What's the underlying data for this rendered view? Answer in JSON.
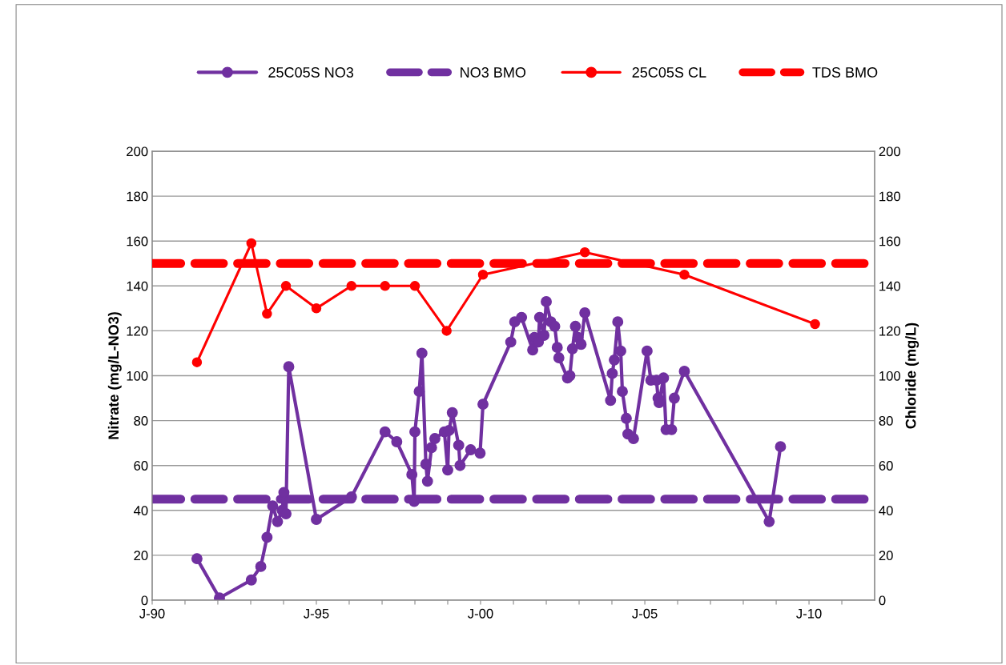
{
  "chart_data": {
    "type": "line",
    "ylabel": "Nitrate (mg/L-NO3)",
    "y2label": "Chloride (mg/L)",
    "xlim": [
      "1990-01-01",
      "2012-01-01"
    ],
    "xticks": [
      {
        "value": "1990-01-01",
        "label": "J-90"
      },
      {
        "value": "1991-01-01",
        "label": null
      },
      {
        "value": "1992-01-01",
        "label": null
      },
      {
        "value": "1993-01-01",
        "label": null
      },
      {
        "value": "1994-01-01",
        "label": null
      },
      {
        "value": "1995-01-01",
        "label": "J-95"
      },
      {
        "value": "1996-01-01",
        "label": null
      },
      {
        "value": "1997-01-01",
        "label": null
      },
      {
        "value": "1998-01-01",
        "label": null
      },
      {
        "value": "1999-01-01",
        "label": null
      },
      {
        "value": "2000-01-01",
        "label": "J-00"
      },
      {
        "value": "2001-01-01",
        "label": null
      },
      {
        "value": "2002-01-01",
        "label": null
      },
      {
        "value": "2003-01-01",
        "label": null
      },
      {
        "value": "2004-01-01",
        "label": null
      },
      {
        "value": "2005-01-01",
        "label": "J-05"
      },
      {
        "value": "2006-01-01",
        "label": null
      },
      {
        "value": "2007-01-01",
        "label": null
      },
      {
        "value": "2008-01-01",
        "label": null
      },
      {
        "value": "2009-01-01",
        "label": null
      },
      {
        "value": "2010-01-01",
        "label": "J-10"
      },
      {
        "value": "2011-01-01",
        "label": null
      }
    ],
    "ylim": [
      0,
      200
    ],
    "yticks": [
      0,
      20,
      40,
      60,
      80,
      100,
      120,
      140,
      160,
      180,
      200
    ],
    "y2lim": [
      0,
      200
    ],
    "y2ticks": [
      0,
      20,
      40,
      60,
      80,
      100,
      120,
      140,
      160,
      180,
      200
    ],
    "grid": "y",
    "legend": "top",
    "marker": "circle",
    "line_style": "solid",
    "series": [
      {
        "name": "25C05S NO3",
        "color": "#7030a0",
        "axis": "y",
        "x": [
          "1991-05-14",
          "1992-01-19",
          "1993-01-08",
          "1993-04-23",
          "1993-07-01",
          "1993-09-02",
          "1993-10-26",
          "1993-12-17",
          "1994-01-05",
          "1994-01-28",
          "1994-02-28",
          "1995-01-01",
          "1996-01-26",
          "1997-02-03",
          "1997-06-13",
          "1997-11-28",
          "1997-12-24",
          "1998-01-01",
          "1998-02-18",
          "1998-03-20",
          "1998-05-03",
          "1998-05-21",
          "1998-07-05",
          "1998-08-11",
          "1998-11-25",
          "1999-01-01",
          "1999-01-15",
          "1999-02-21",
          "1999-05-03",
          "1999-05-18",
          "1999-09-13",
          "1999-12-27",
          "2000-01-28",
          "2000-12-02",
          "2001-01-15",
          "2001-04-01",
          "2001-08-03",
          "2001-08-21",
          "2001-10-05",
          "2001-10-19",
          "2001-12-06",
          "2002-01-01",
          "2002-02-21",
          "2002-04-05",
          "2002-05-03",
          "2002-05-21",
          "2002-08-25",
          "2002-09-20",
          "2002-10-19",
          "2002-11-21",
          "2002-12-20",
          "2003-01-23",
          "2003-03-06",
          "2003-12-17",
          "2004-01-05",
          "2004-01-28",
          "2004-03-06",
          "2004-04-08",
          "2004-04-26",
          "2004-06-09",
          "2004-06-27",
          "2004-08-28",
          "2005-01-26",
          "2005-03-09",
          "2005-05-11",
          "2005-05-28",
          "2005-06-09",
          "2005-07-28",
          "2005-08-25",
          "2005-10-26",
          "2005-11-25",
          "2006-03-17",
          "2008-10-15",
          "2009-02-18"
        ],
        "values": [
          18.5,
          1,
          9,
          15,
          28,
          42,
          35,
          40,
          48,
          38.5,
          104,
          36,
          46,
          75,
          70.6,
          56,
          44,
          75,
          93,
          110,
          60.6,
          53,
          68,
          72,
          75,
          58,
          75.6,
          83.5,
          69,
          60,
          67,
          65.5,
          87.3,
          115,
          124,
          126,
          111.5,
          117,
          115,
          126,
          118,
          133,
          124,
          122,
          112.6,
          108,
          99,
          100,
          112,
          122,
          117,
          114,
          128,
          89,
          101,
          107,
          124,
          111,
          93,
          81,
          74,
          72,
          111,
          98,
          98,
          90,
          88,
          99,
          76,
          76,
          90,
          102,
          35,
          68.4
        ]
      },
      {
        "name": "25C05S CL",
        "color": "#ff0000",
        "axis": "y2",
        "x": [
          "1991-05-14",
          "1993-01-08",
          "1993-07-01",
          "1994-01-28",
          "1995-01-01",
          "1996-01-26",
          "1997-02-03",
          "1998-01-01",
          "1998-12-20",
          "2000-01-28",
          "2003-03-06",
          "2006-03-17",
          "2010-03-09"
        ],
        "values": [
          106,
          159,
          127.6,
          140,
          130,
          140,
          140,
          140,
          120,
          145,
          155,
          145,
          123
        ]
      }
    ],
    "ref_lines": [
      {
        "axis": "y",
        "value": 45,
        "label": "NO3 BMO",
        "color": "#7030a0",
        "line_style": "dashed"
      },
      {
        "axis": "y2",
        "value": 150,
        "label": "TDS BMO",
        "color": "#ff0000",
        "line_style": "dashed"
      }
    ]
  }
}
